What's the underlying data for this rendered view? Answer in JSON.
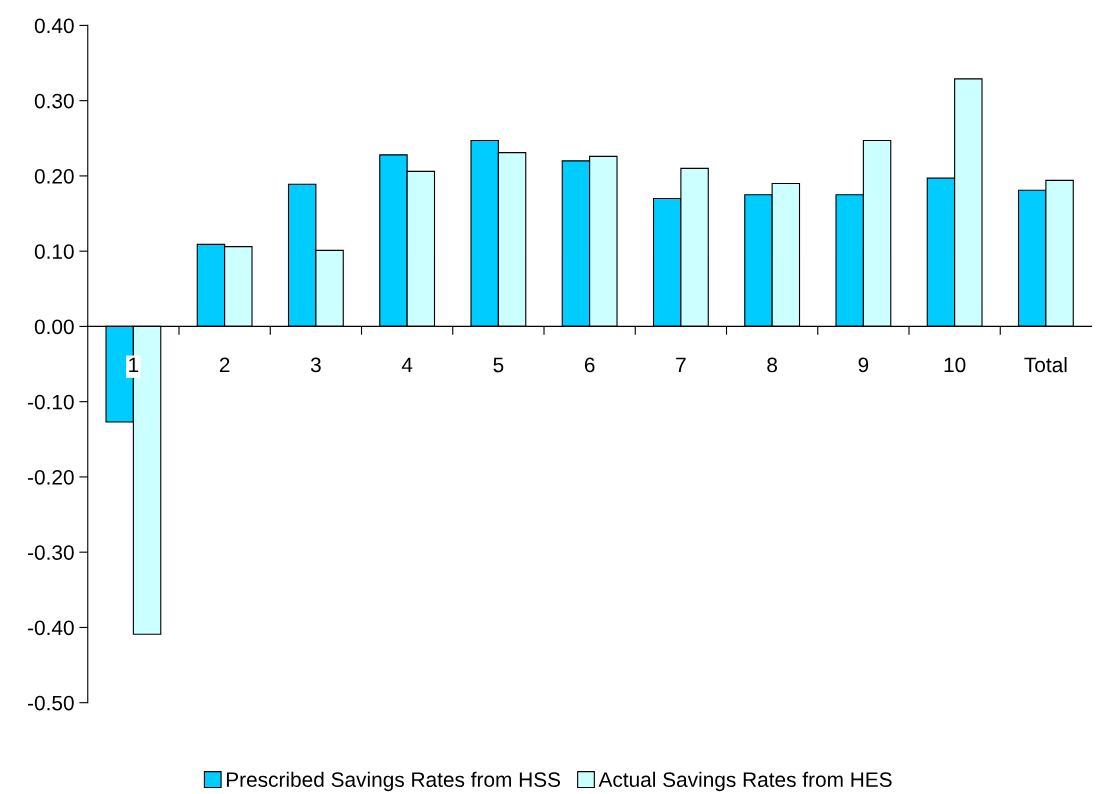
{
  "chart_data": {
    "type": "bar",
    "categories": [
      "1",
      "2",
      "3",
      "4",
      "5",
      "6",
      "7",
      "8",
      "9",
      "10",
      "Total"
    ],
    "series": [
      {
        "name": "Prescribed Savings Rates from HSS",
        "color": "#00ccff",
        "values": [
          -0.127,
          0.109,
          0.189,
          0.228,
          0.247,
          0.22,
          0.17,
          0.175,
          0.175,
          0.197,
          0.181
        ]
      },
      {
        "name": "Actual Savings Rates from HES",
        "color": "#ccffff",
        "values": [
          -0.409,
          0.106,
          0.101,
          0.206,
          0.231,
          0.226,
          0.21,
          0.19,
          0.247,
          0.329,
          0.194
        ]
      }
    ],
    "ylim": [
      -0.5,
      0.4
    ],
    "yticks": [
      {
        "value": -0.5,
        "label": "-0.50"
      },
      {
        "value": -0.4,
        "label": "-0.40"
      },
      {
        "value": -0.3,
        "label": "-0.30"
      },
      {
        "value": -0.2,
        "label": "-0.20"
      },
      {
        "value": -0.1,
        "label": "-0.10"
      },
      {
        "value": 0,
        "label": "0.00"
      },
      {
        "value": 0.1,
        "label": "0.10"
      },
      {
        "value": 0.2,
        "label": "0.20"
      },
      {
        "value": 0.3,
        "label": "0.30"
      },
      {
        "value": 0.4,
        "label": "0.40"
      }
    ],
    "grid": false,
    "legend": "bottom"
  }
}
